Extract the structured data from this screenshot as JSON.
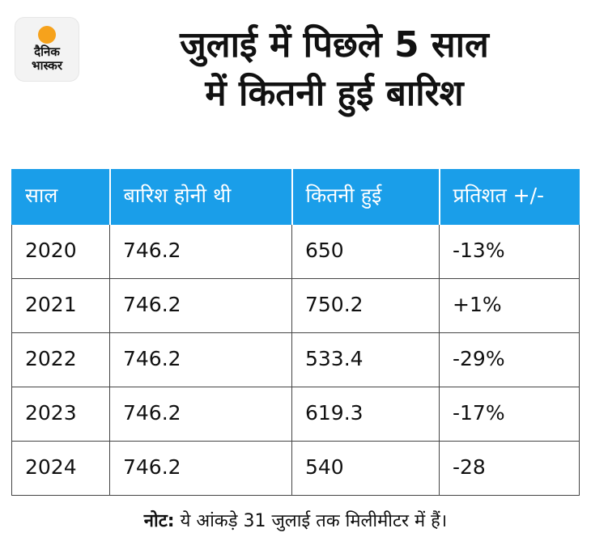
{
  "logo": {
    "line1": "दैनिक",
    "line2": "भास्कर",
    "sun_color": "#f6a21c"
  },
  "title": {
    "line1": "जुलाई में पिछले 5 साल",
    "line2": "में कितनी हुई बारिश"
  },
  "chart_data": {
    "type": "table",
    "title": "जुलाई में पिछले 5 साल में कितनी हुई बारिश",
    "columns": [
      "साल",
      "बारिश होनी थी",
      "कितनी हुई",
      "प्रतिशत +/-"
    ],
    "rows": [
      [
        "2020",
        "746.2",
        "650",
        "-13%"
      ],
      [
        "2021",
        "746.2",
        "750.2",
        "+1%"
      ],
      [
        "2022",
        "746.2",
        "533.4",
        "-29%"
      ],
      [
        "2023",
        "746.2",
        "619.3",
        "-17%"
      ],
      [
        "2024",
        "746.2",
        "540",
        "-28"
      ]
    ],
    "header_color": "#1a9ee9"
  },
  "note": {
    "label": "नोट:",
    "text": " ये आंकड़े 31 जुलाई तक मिलीमीटर में हैं।"
  }
}
